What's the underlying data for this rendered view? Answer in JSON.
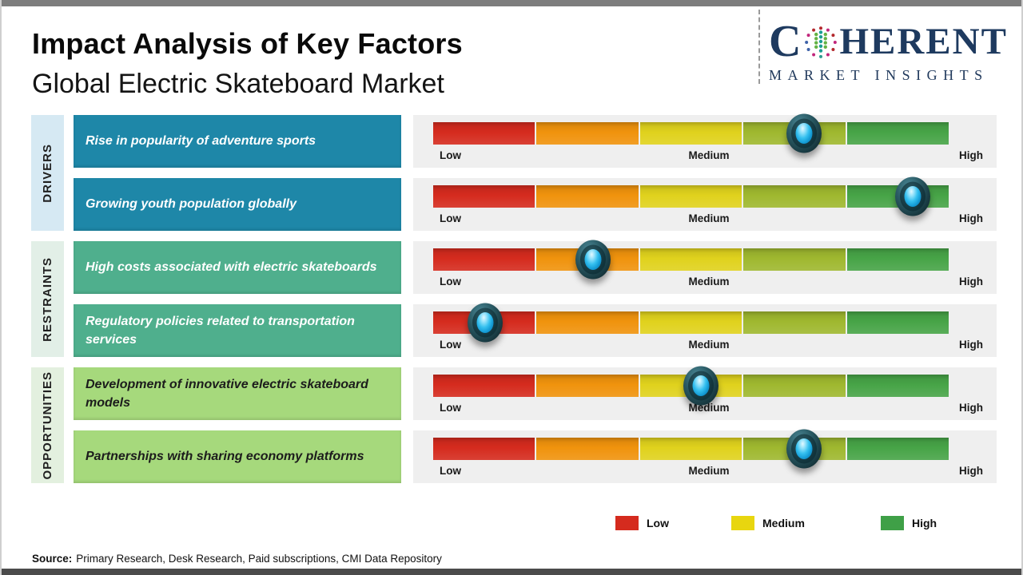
{
  "header": {
    "title": "Impact Analysis of Key Factors",
    "subtitle": "Global Electric Skateboard Market"
  },
  "logo": {
    "word_start": "C",
    "word_end": "HERENT",
    "tagline": "MARKET INSIGHTS",
    "brand_color": "#1E3A5F"
  },
  "scale_labels": {
    "low": "Low",
    "medium": "Medium",
    "high": "High"
  },
  "scale_bar": {
    "segment_colors": [
      "#D52B1E",
      "#F0930D",
      "#E0D21D",
      "#9FB82F",
      "#47A447"
    ],
    "panel_color": "#EFEFEF",
    "marker_outer_color": "#1C444D",
    "marker_core_color": "#29B5E8"
  },
  "groups": [
    {
      "id": "drivers",
      "label": "DRIVERS",
      "strip_color": "#D6E9F3",
      "box_color": "#1E87A8",
      "box_text_color": "#FFFFFF",
      "factors": [
        {
          "text": "Rise in popularity of adventure sports",
          "impact_percent": 72
        },
        {
          "text": "Growing youth population globally",
          "impact_percent": 93
        }
      ]
    },
    {
      "id": "restraints",
      "label": "RESTRAINTS",
      "strip_color": "#E2EFE7",
      "box_color": "#4FAF8D",
      "box_text_color": "#FFFFFF",
      "factors": [
        {
          "text": "High costs associated with electric skateboards",
          "impact_percent": 31
        },
        {
          "text": "Regulatory policies related to transportation services",
          "impact_percent": 10
        }
      ]
    },
    {
      "id": "opportunities",
      "label": "OPPORTUNITIES",
      "strip_color": "#E3F0DF",
      "box_color": "#A6D97C",
      "box_text_color": "#1C1C1C",
      "factors": [
        {
          "text": "Development of innovative electric skateboard models",
          "impact_percent": 52
        },
        {
          "text": "Partnerships with sharing economy platforms",
          "impact_percent": 72
        }
      ]
    }
  ],
  "legend": {
    "items": [
      {
        "label": "Low",
        "color": "#D52B1E"
      },
      {
        "label": "Medium",
        "color": "#E8D60F"
      },
      {
        "label": "High",
        "color": "#3FA047"
      }
    ]
  },
  "source": {
    "label": "Source:",
    "text": "Primary Research, Desk Research, Paid subscriptions, CMI Data Repository"
  },
  "chart_data": {
    "type": "bar",
    "title": "Impact Analysis of Key Factors",
    "subtitle": "Global Electric Skateboard Market",
    "xlabel": "Impact level",
    "scale_ticks": [
      "Low",
      "Medium",
      "High"
    ],
    "xlim": [
      0,
      100
    ],
    "categories": [
      "Rise in popularity of adventure sports",
      "Growing youth population globally",
      "High costs associated with electric skateboards",
      "Regulatory policies related to transportation services",
      "Development of innovative electric skateboard models",
      "Partnerships with sharing economy platforms"
    ],
    "group_of_category": [
      "Drivers",
      "Drivers",
      "Restraints",
      "Restraints",
      "Opportunities",
      "Opportunities"
    ],
    "series": [
      {
        "name": "Impact position (% of Low-to-High scale)",
        "values": [
          72,
          93,
          31,
          10,
          52,
          72
        ]
      }
    ],
    "legend_position": "bottom"
  }
}
